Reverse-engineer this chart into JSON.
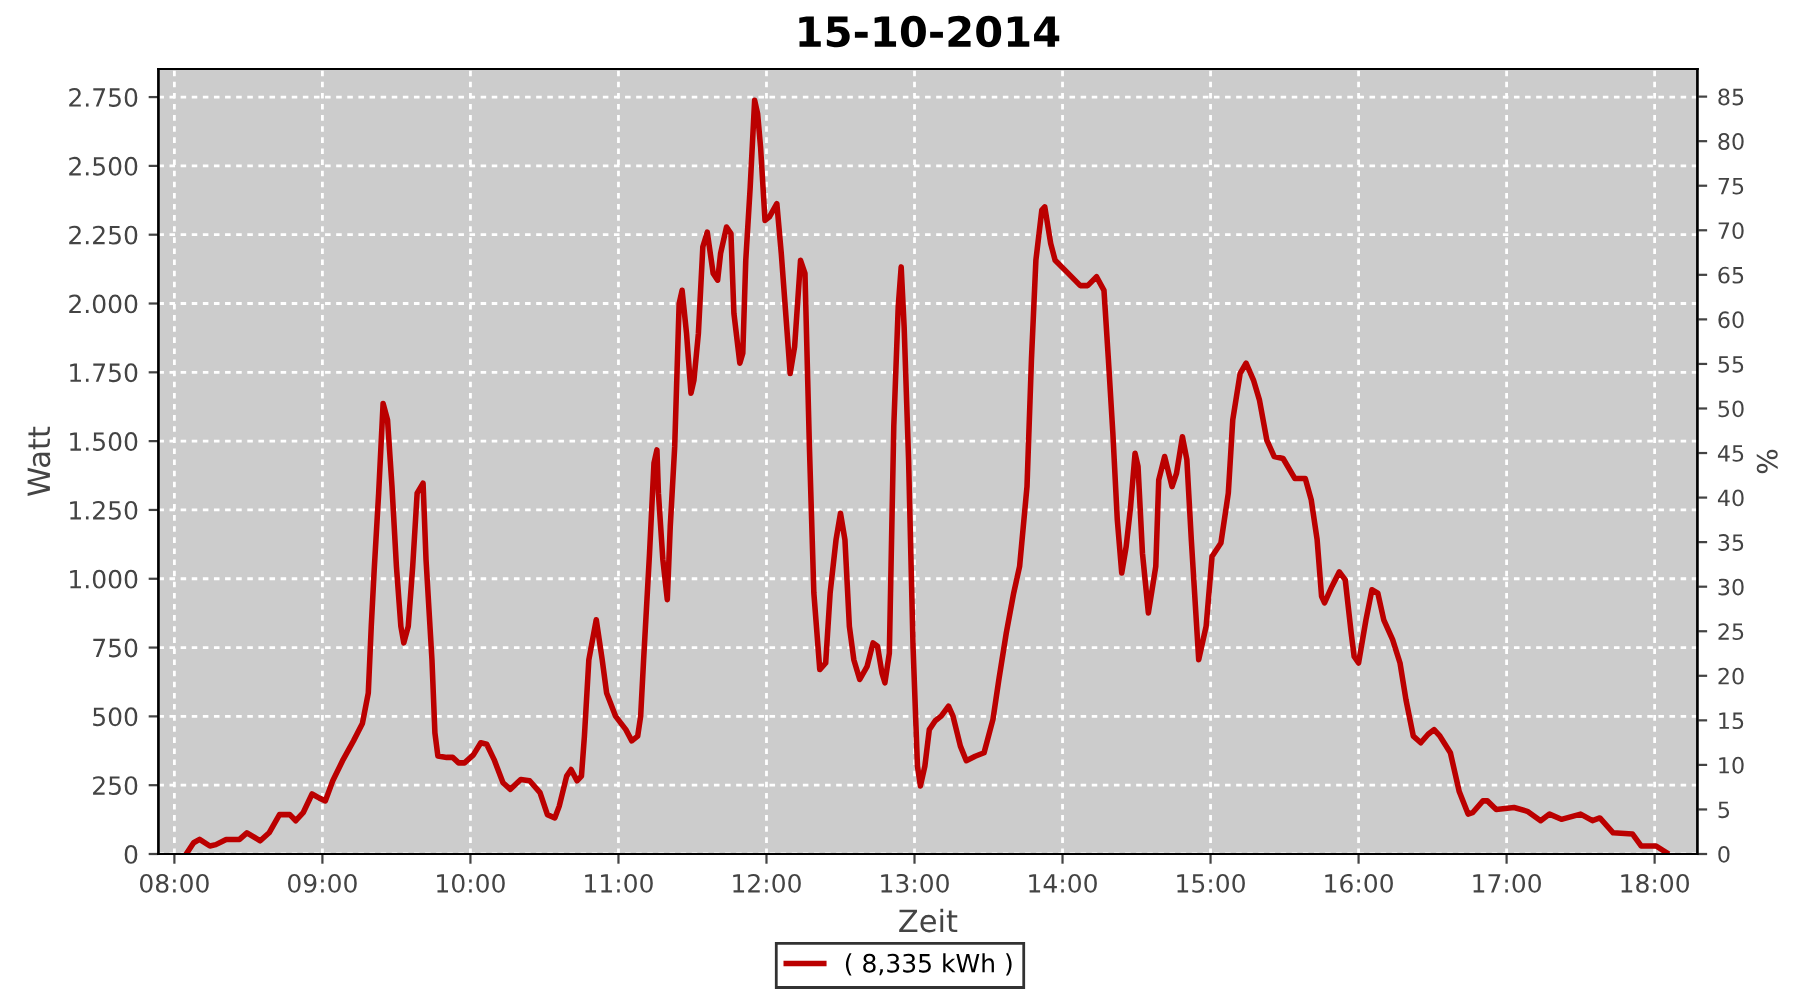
{
  "chart_data": {
    "type": "line",
    "title": "15-10-2014",
    "xlabel": "Zeit",
    "ylabel": "Watt",
    "y2label": "%",
    "xlim": [
      7.892,
      18.289
    ],
    "xticks": [
      {
        "value": 8,
        "label": "08:00"
      },
      {
        "value": 9,
        "label": "09:00"
      },
      {
        "value": 10,
        "label": "10:00"
      },
      {
        "value": 11,
        "label": "11:00"
      },
      {
        "value": 12,
        "label": "12:00"
      },
      {
        "value": 13,
        "label": "13:00"
      },
      {
        "value": 14,
        "label": "14:00"
      },
      {
        "value": 15,
        "label": "15:00"
      },
      {
        "value": 16,
        "label": "16:00"
      },
      {
        "value": 17,
        "label": "17:00"
      },
      {
        "value": 18,
        "label": "18:00"
      }
    ],
    "ylim": [
      0,
      2852
    ],
    "yticks": [
      0,
      250,
      500,
      750,
      {
        "value": 1000,
        "label": "1.000"
      },
      {
        "value": 1250,
        "label": "1.250"
      },
      {
        "value": 1500,
        "label": "1.500"
      },
      {
        "value": 1750,
        "label": "1.750"
      },
      {
        "value": 2000,
        "label": "2.000"
      },
      {
        "value": 2250,
        "label": "2.250"
      },
      {
        "value": 2500,
        "label": "2.500"
      },
      {
        "value": 2750,
        "label": "2.750"
      }
    ],
    "y2lim": [
      0,
      88.1
    ],
    "y2ticks": [
      0,
      5,
      10,
      15,
      20,
      25,
      30,
      35,
      40,
      45,
      50,
      55,
      60,
      65,
      70,
      75,
      80,
      85
    ],
    "grid": true,
    "legend": "bottom",
    "marker": "none",
    "line_style": "solid",
    "series": [
      {
        "name": "( 8,335 kWh )",
        "color": "#bb0000",
        "x": [
          8.08,
          8.13,
          8.17,
          8.24,
          8.28,
          8.35,
          8.44,
          8.49,
          8.58,
          8.64,
          8.71,
          8.78,
          8.82,
          8.87,
          8.93,
          8.98,
          9.02,
          9.07,
          9.14,
          9.21,
          9.27,
          9.31,
          9.33,
          9.35,
          9.38,
          9.41,
          9.44,
          9.47,
          9.5,
          9.53,
          9.55,
          9.58,
          9.61,
          9.64,
          9.68,
          9.7,
          9.74,
          9.76,
          9.78,
          9.84,
          9.88,
          9.92,
          9.96,
          10.02,
          10.07,
          10.11,
          10.16,
          10.22,
          10.27,
          10.34,
          10.4,
          10.47,
          10.52,
          10.57,
          10.6,
          10.65,
          10.68,
          10.72,
          10.75,
          10.77,
          10.8,
          10.85,
          10.89,
          10.92,
          10.98,
          11.05,
          11.09,
          11.13,
          11.15,
          11.17,
          11.21,
          11.24,
          11.26,
          11.27,
          11.3,
          11.33,
          11.35,
          11.38,
          11.41,
          11.43,
          11.46,
          11.49,
          11.51,
          11.54,
          11.57,
          11.6,
          11.64,
          11.67,
          11.69,
          11.73,
          11.76,
          11.78,
          11.82,
          11.84,
          11.86,
          11.89,
          11.92,
          11.94,
          11.96,
          11.99,
          12.02,
          12.07,
          12.1,
          12.14,
          12.16,
          12.19,
          12.23,
          12.26,
          12.29,
          12.32,
          12.36,
          12.4,
          12.43,
          12.47,
          12.5,
          12.53,
          12.56,
          12.59,
          12.63,
          12.68,
          12.72,
          12.75,
          12.78,
          12.8,
          12.83,
          12.86,
          12.89,
          12.91,
          12.93,
          12.96,
          12.99,
          13.01,
          13.02,
          13.04,
          13.07,
          13.1,
          13.14,
          13.18,
          13.23,
          13.26,
          13.31,
          13.35,
          13.41,
          13.47,
          13.53,
          13.57,
          13.62,
          13.67,
          13.71,
          13.76,
          13.79,
          13.82,
          13.86,
          13.88,
          13.92,
          13.95,
          14.03,
          14.12,
          14.17,
          14.23,
          14.28,
          14.31,
          14.34,
          14.37,
          14.4,
          14.43,
          14.46,
          14.49,
          14.51,
          14.54,
          14.58,
          14.63,
          14.65,
          14.69,
          14.74,
          14.77,
          14.81,
          14.84,
          14.87,
          14.92,
          14.97,
          15.01,
          15.07,
          15.12,
          15.15,
          15.2,
          15.24,
          15.29,
          15.33,
          15.38,
          15.43,
          15.49,
          15.57,
          15.64,
          15.68,
          15.72,
          15.75,
          15.77,
          15.82,
          15.87,
          15.91,
          15.95,
          15.97,
          16.0,
          16.05,
          16.09,
          16.13,
          16.17,
          16.23,
          16.28,
          16.32,
          16.37,
          16.42,
          16.47,
          16.51,
          16.55,
          16.62,
          16.68,
          16.74,
          16.77,
          16.84,
          16.87,
          16.93,
          17.05,
          17.14,
          17.23,
          17.29,
          17.37,
          17.5,
          17.58,
          17.63,
          17.72,
          17.85,
          17.91,
          18.01,
          18.08
        ],
        "values": [
          0,
          41,
          53,
          29,
          34,
          53,
          53,
          77,
          48,
          77,
          143,
          143,
          121,
          150,
          218,
          203,
          193,
          266,
          343,
          411,
          474,
          585,
          827,
          1033,
          1311,
          1637,
          1577,
          1335,
          1045,
          827,
          767,
          827,
          1045,
          1311,
          1347,
          1069,
          706,
          440,
          356,
          351,
          351,
          331,
          331,
          360,
          404,
          399,
          343,
          259,
          235,
          271,
          266,
          223,
          143,
          131,
          174,
          283,
          307,
          266,
          283,
          428,
          706,
          851,
          706,
          585,
          501,
          452,
          411,
          428,
          501,
          706,
          1093,
          1420,
          1468,
          1311,
          1069,
          924,
          1190,
          1480,
          2000,
          2048,
          1891,
          1674,
          1722,
          1891,
          2206,
          2259,
          2109,
          2085,
          2182,
          2278,
          2254,
          1964,
          1783,
          1819,
          2157,
          2423,
          2738,
          2690,
          2569,
          2302,
          2315,
          2363,
          2182,
          1891,
          1746,
          1843,
          2157,
          2109,
          1480,
          948,
          670,
          694,
          948,
          1142,
          1238,
          1142,
          827,
          706,
          634,
          682,
          767,
          755,
          658,
          622,
          730,
          1553,
          1988,
          2133,
          1915,
          1432,
          755,
          464,
          319,
          247,
          319,
          452,
          484,
          501,
          537,
          501,
          392,
          339,
          355,
          368,
          489,
          634,
          803,
          948,
          1045,
          1335,
          1795,
          2157,
          2339,
          2351,
          2218,
          2157,
          2114,
          2065,
          2065,
          2097,
          2048,
          1795,
          1529,
          1214,
          1021,
          1117,
          1263,
          1456,
          1408,
          1093,
          876,
          1045,
          1359,
          1444,
          1335,
          1383,
          1516,
          1432,
          1142,
          706,
          827,
          1081,
          1130,
          1311,
          1577,
          1746,
          1783,
          1722,
          1650,
          1504,
          1444,
          1437,
          1364,
          1364,
          1287,
          1142,
          936,
          912,
          972,
          1025,
          996,
          803,
          718,
          694,
          851,
          960,
          948,
          851,
          779,
          694,
          561,
          428,
          404,
          435,
          452,
          428,
          368,
          227,
          145,
          150,
          193,
          193,
          162,
          169,
          155,
          121,
          145,
          126,
          145,
          121,
          131,
          77,
          73,
          29,
          29,
          5
        ]
      }
    ]
  }
}
